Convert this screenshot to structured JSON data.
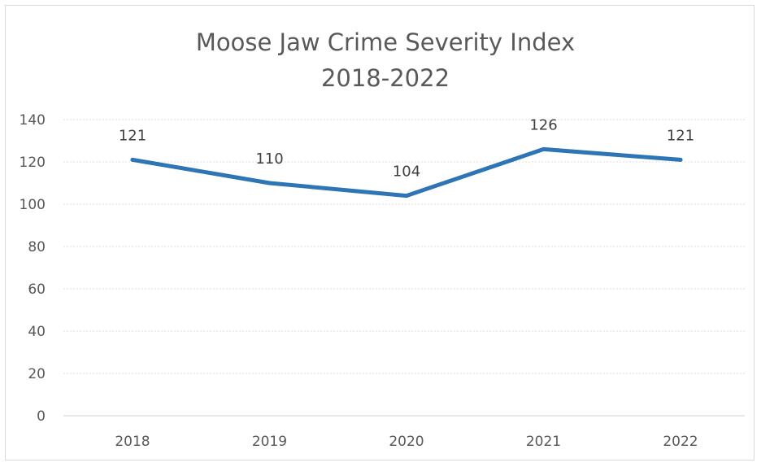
{
  "chart_data": {
    "type": "line",
    "title": [
      "Moose Jaw Crime Severity Index",
      "2018-2022"
    ],
    "xlabel": "",
    "ylabel": "",
    "categories": [
      "2018",
      "2019",
      "2020",
      "2021",
      "2022"
    ],
    "series": [
      {
        "name": "Crime Severity Index",
        "values": [
          121,
          110,
          104,
          126,
          121
        ],
        "data_labels": [
          "121",
          "110",
          "104",
          "126",
          "121"
        ],
        "color": "#2e75b6"
      }
    ],
    "ylim": [
      0,
      140
    ],
    "yticks": [
      0,
      20,
      40,
      60,
      80,
      100,
      120,
      140
    ],
    "ytick_labels": [
      "0",
      "20",
      "40",
      "60",
      "80",
      "100",
      "120",
      "140"
    ],
    "grid": true,
    "legend": "none"
  },
  "colors": {
    "line": "#2e75b6",
    "grid": "#dcdcdc",
    "text": "#595959"
  }
}
